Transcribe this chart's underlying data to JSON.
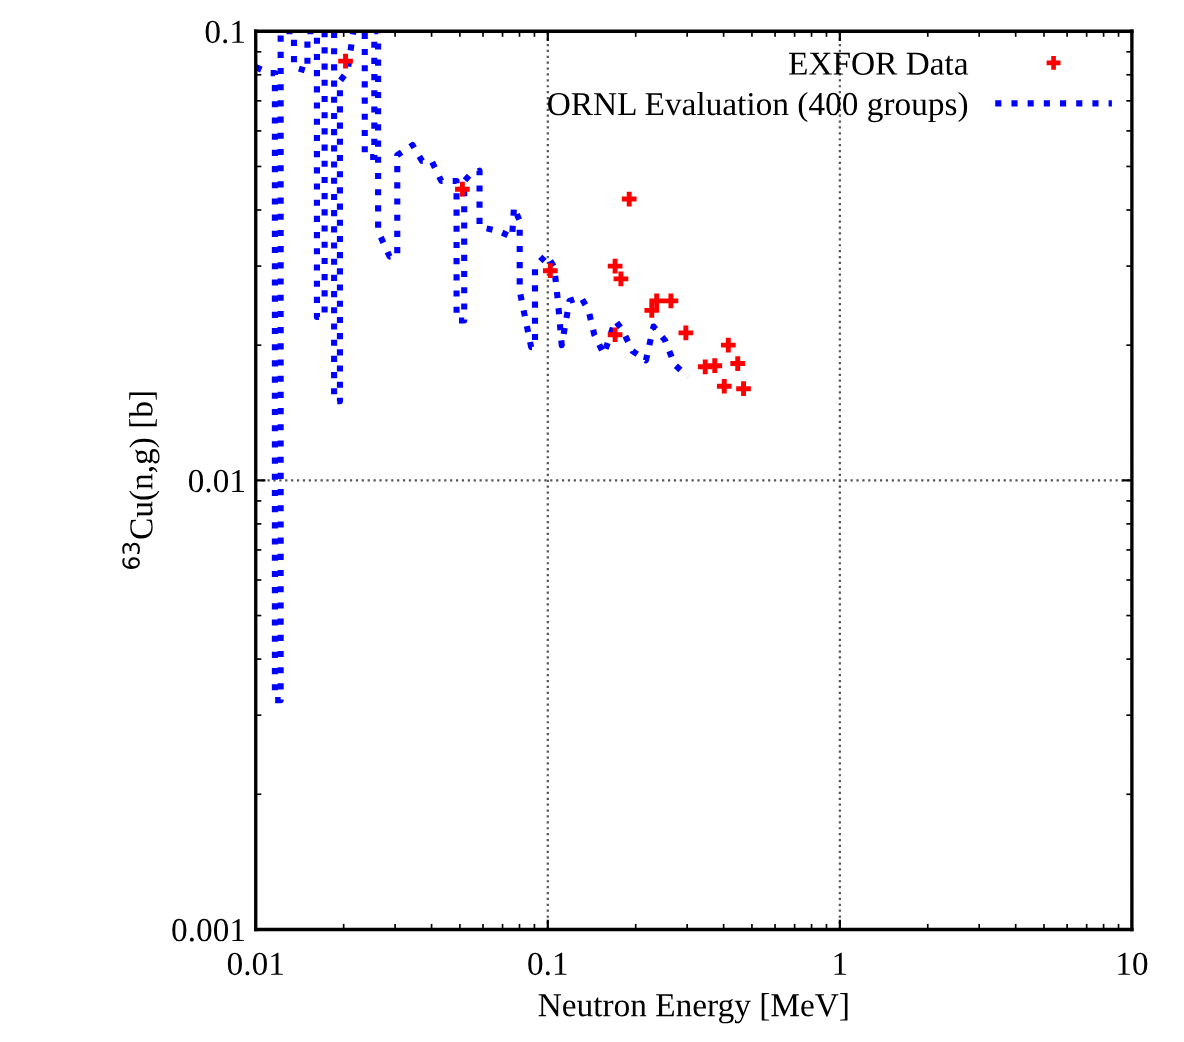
{
  "chart_data": {
    "type": "scatter",
    "xlabel": "Neutron Energy [MeV]",
    "ylabel": "$^{63}$Cu(n,g) [b]",
    "log": "xy",
    "xlim": [
      0.01,
      10
    ],
    "ylim": [
      0.001,
      0.1
    ],
    "xticks": [
      0.01,
      0.1,
      1,
      10
    ],
    "yticks": [
      0.001,
      0.01,
      0.1
    ],
    "grid": true,
    "legend": "top right",
    "series": [
      {
        "name": "EXFOR Data",
        "marker": "cross",
        "color": "#ff0000",
        "x": [
          0.0203,
          0.051,
          0.102,
          0.17,
          0.178,
          0.19,
          0.17,
          0.227,
          0.236,
          0.264,
          0.297,
          0.346,
          0.373,
          0.415,
          0.447,
          0.402,
          0.468
        ],
        "values": [
          0.0858,
          0.0445,
          0.0293,
          0.03,
          0.0281,
          0.0423,
          0.0211,
          0.0239,
          0.0251,
          0.0251,
          0.0213,
          0.0179,
          0.018,
          0.02,
          0.0182,
          0.0162,
          0.016
        ]
      },
      {
        "name": "ORNL Evaluation (400 groups)",
        "type": "line",
        "line_style": "dotted",
        "marker": "none",
        "color": "#0000ff",
        "x": [
          0.01,
          0.0111,
          0.01163,
          0.01163,
          0.01217,
          0.01217,
          0.01352,
          0.01352,
          0.01503,
          0.01503,
          0.0162,
          0.0162,
          0.01721,
          0.01721,
          0.01855,
          0.01855,
          0.01942,
          0.01942,
          0.02063,
          0.02158,
          0.02362,
          0.02362,
          0.02547,
          0.02547,
          0.02624,
          0.02624,
          0.02873,
          0.03052,
          0.03052,
          0.03443,
          0.03713,
          0.04004,
          0.04318,
          0.04871,
          0.04871,
          0.05173,
          0.05173,
          0.05414,
          0.05838,
          0.05838,
          0.06787,
          0.07546,
          0.0766,
          0.08013,
          0.08013,
          0.0877,
          0.0904,
          0.0904,
          0.09897,
          0.1051,
          0.1083,
          0.1116,
          0.1186,
          0.1298,
          0.1379,
          0.1443,
          0.1556,
          0.1703,
          0.1809,
          0.1951,
          0.2168,
          0.2301,
          0.2521,
          0.2718,
          0.302
        ],
        "values": [
          0.0832,
          0.0807,
          0.0807,
          0.00324,
          0.00324,
          0.1,
          0.1,
          0.0832,
          0.0815,
          0.1,
          0.1,
          0.0231,
          0.0231,
          0.1,
          0.1,
          0.015,
          0.015,
          0.0774,
          0.0815,
          0.1,
          0.1,
          0.0525,
          0.0525,
          0.1,
          0.1,
          0.0359,
          0.0315,
          0.0315,
          0.053,
          0.0558,
          0.0514,
          0.0514,
          0.0464,
          0.0464,
          0.0227,
          0.0227,
          0.0464,
          0.0479,
          0.0489,
          0.0367,
          0.0359,
          0.0348,
          0.0406,
          0.0378,
          0.0264,
          0.0198,
          0.0198,
          0.0299,
          0.0318,
          0.0299,
          0.0251,
          0.02,
          0.0251,
          0.0256,
          0.0239,
          0.0211,
          0.0191,
          0.0227,
          0.0215,
          0.0194,
          0.0185,
          0.022,
          0.0205,
          0.0181,
          0.017
        ]
      }
    ]
  }
}
